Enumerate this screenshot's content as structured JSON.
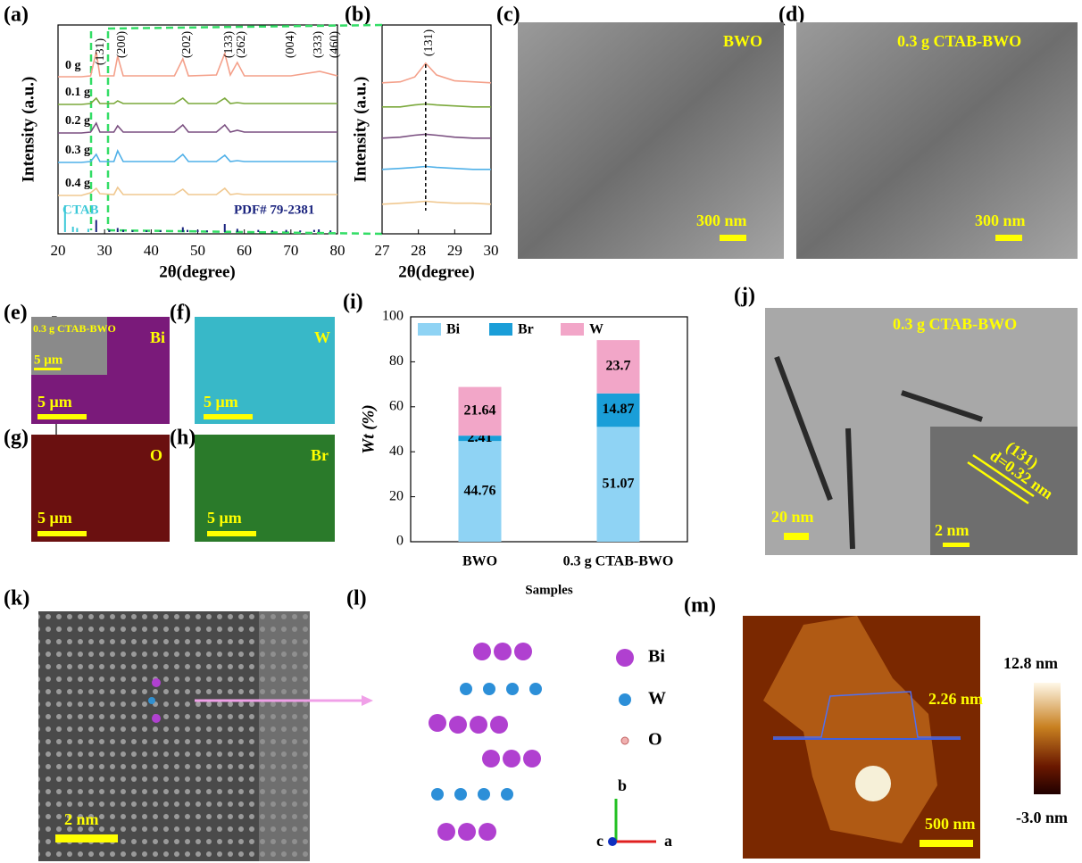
{
  "panel_labels": [
    "(a)",
    "(b)",
    "(c)",
    "(d)",
    "(e)",
    "(f)",
    "(g)",
    "(h)",
    "(i)",
    "(j)",
    "(k)",
    "(l)",
    "(m)"
  ],
  "chart_data": [
    {
      "type": "line",
      "xlabel": "2θ(degree)",
      "ylabel": "Intensity (a.u.)",
      "xlim": [
        20,
        80
      ],
      "xticks": [
        20,
        30,
        40,
        50,
        60,
        70,
        80
      ],
      "x": [
        20,
        25,
        27,
        28.2,
        29,
        32,
        32.8,
        34,
        45,
        46.8,
        48,
        54,
        55.8,
        57,
        58.5,
        60,
        70,
        76.2,
        80
      ],
      "series": [
        {
          "name": "0 g",
          "color": "#f4a08a",
          "values": [
            2,
            2,
            3,
            30,
            3,
            3,
            25,
            3,
            3,
            22,
            3,
            4,
            28,
            4,
            18,
            3,
            3,
            8,
            3
          ]
        },
        {
          "name": "0.1 g",
          "color": "#7aa83a",
          "values": [
            1,
            1,
            2,
            8,
            2,
            2,
            5,
            2,
            2,
            8,
            2,
            2,
            8,
            2,
            3,
            2,
            2,
            2,
            2
          ]
        },
        {
          "name": "0.2 g",
          "color": "#7a4f80",
          "values": [
            1,
            1,
            2,
            12,
            2,
            2,
            9,
            2,
            2,
            10,
            2,
            2,
            10,
            2,
            4,
            2,
            2,
            2,
            2
          ]
        },
        {
          "name": "0.3 g",
          "color": "#4fb0e8",
          "values": [
            1,
            1,
            2,
            10,
            2,
            2,
            14,
            2,
            2,
            10,
            2,
            2,
            9,
            2,
            3,
            2,
            2,
            2,
            2
          ]
        },
        {
          "name": "0.4 g",
          "color": "#f0c890",
          "values": [
            1,
            1,
            4,
            9,
            3,
            2,
            10,
            2,
            2,
            8,
            2,
            2,
            9,
            2,
            3,
            2,
            2,
            2,
            2
          ]
        }
      ],
      "peaks": [
        {
          "label": "(131)",
          "x": 28.2
        },
        {
          "label": "(200)",
          "x": 32.8
        },
        {
          "label": "(202)",
          "x": 46.8
        },
        {
          "label": "(133)",
          "x": 55.8
        },
        {
          "label": "(262)",
          "x": 58.5
        },
        {
          "label": "(004)",
          "x": 69
        },
        {
          "label": "(333)",
          "x": 75
        },
        {
          "label": "(460)",
          "x": 78.5
        }
      ],
      "references": [
        {
          "name": "CTAB",
          "color": "#3cc8d8",
          "x": [
            21.5,
            23.2,
            24.1,
            26.5
          ],
          "values": [
            100,
            20,
            15,
            12
          ]
        },
        {
          "name": "PDF# 79-2381",
          "color": "#1a237e",
          "x": [
            28.2,
            31,
            32.8,
            34,
            36,
            39,
            42,
            46.8,
            47.8,
            50,
            52,
            55.8,
            58.5,
            63,
            66,
            69,
            72,
            75,
            76,
            78.5
          ],
          "values": [
            45,
            8,
            15,
            8,
            6,
            6,
            6,
            18,
            8,
            8,
            6,
            30,
            12,
            8,
            6,
            8,
            6,
            8,
            10,
            6
          ]
        }
      ]
    },
    {
      "type": "line",
      "xlabel": "2θ(degree)",
      "ylabel": "Intensity (a.u.)",
      "xlim": [
        27,
        30
      ],
      "xticks": [
        27,
        28,
        29,
        30
      ],
      "x": [
        27,
        27.5,
        27.9,
        28.2,
        28.5,
        29,
        29.5,
        30
      ],
      "series": [
        {
          "color": "#f4a08a",
          "values": [
            2,
            3,
            8,
            22,
            10,
            4,
            3,
            2
          ]
        },
        {
          "color": "#7aa83a",
          "values": [
            2,
            2,
            4,
            5,
            4,
            3,
            2,
            2
          ]
        },
        {
          "color": "#7a4f80",
          "values": [
            2,
            3,
            5,
            6,
            5,
            3,
            2,
            2
          ]
        },
        {
          "color": "#4fb0e8",
          "values": [
            2,
            3,
            4,
            5,
            4,
            3,
            2,
            2
          ]
        },
        {
          "color": "#f0c890",
          "values": [
            2,
            3,
            4,
            5,
            4,
            3,
            3,
            2
          ]
        }
      ],
      "peak": {
        "label": "(131)",
        "x": 28.2
      }
    },
    {
      "type": "stacked_bar",
      "xlabel": "Samples",
      "ylabel": "Wt (%)",
      "categories": [
        "BWO",
        "0.3 g CTAB-BWO"
      ],
      "ylim": [
        0,
        100
      ],
      "yticks": [
        0,
        20,
        40,
        60,
        80,
        100
      ],
      "legend": "top-left",
      "series": [
        {
          "name": "Bi",
          "color": "#8fd3f4",
          "values": [
            44.76,
            51.07
          ]
        },
        {
          "name": "Br",
          "color": "#1a9ed8",
          "values": [
            2.41,
            14.87
          ]
        },
        {
          "name": "W",
          "color": "#f2a6c8",
          "values": [
            21.64,
            23.7
          ]
        }
      ]
    }
  ],
  "images": {
    "c": {
      "label": "BWO",
      "scale_bar": "300 nm"
    },
    "d": {
      "label": "0.3 g CTAB-BWO",
      "scale_bar": "300 nm"
    },
    "e": {
      "element": "Bi",
      "scale_bar": "5 μm",
      "inset_label": "0.3 g CTAB-BWO",
      "inset_scale_bar": "5 μm"
    },
    "f": {
      "element": "W",
      "scale_bar": "5 μm"
    },
    "g": {
      "element": "O",
      "scale_bar": "5 μm"
    },
    "h": {
      "element": "Br",
      "scale_bar": "5 μm"
    },
    "j": {
      "label": "0.3 g CTAB-BWO",
      "scale_bar": "20 nm",
      "inset_scale_bar": "2 nm",
      "plane": "(131)",
      "spacing": "d=0.32 nm"
    },
    "k": {
      "scale_bar": "2 nm"
    },
    "l": {
      "legend": [
        "Bi",
        "W",
        "O"
      ],
      "axes": [
        "b",
        "c",
        "a"
      ]
    },
    "m": {
      "height": "2.26 nm",
      "scale_bar": "500 nm",
      "colorbar_max": "12.8 nm",
      "colorbar_min": "-3.0 nm"
    }
  }
}
